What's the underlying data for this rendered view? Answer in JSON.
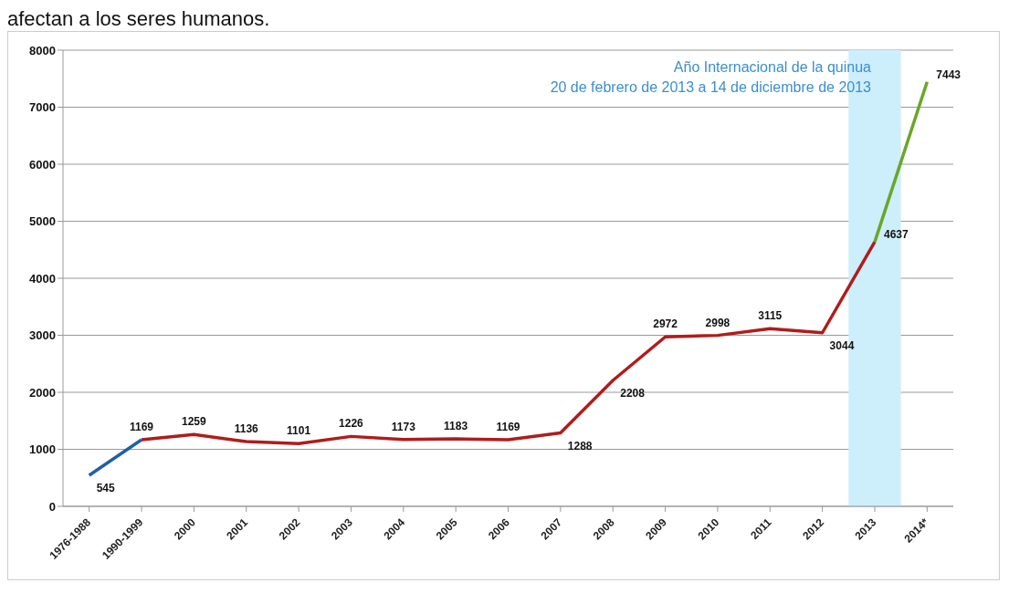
{
  "chart_data": {
    "type": "line",
    "categories": [
      "1976-1988",
      "1990-1999",
      "2000",
      "2001",
      "2002",
      "2003",
      "2004",
      "2005",
      "2006",
      "2007",
      "2008",
      "2009",
      "2010",
      "2011",
      "2012",
      "2013",
      "2014*"
    ],
    "series": [
      {
        "color": "#1f5fa8",
        "values": [
          545,
          1169,
          null,
          null,
          null,
          null,
          null,
          null,
          null,
          null,
          null,
          null,
          null,
          null,
          null,
          null,
          null
        ],
        "value_labels": [
          "545",
          null,
          null,
          null,
          null,
          null,
          null,
          null,
          null,
          null,
          null,
          null,
          null,
          null,
          null,
          null,
          null
        ]
      },
      {
        "color": "#b01c1c",
        "values": [
          null,
          1169,
          1259,
          1136,
          1101,
          1226,
          1173,
          1183,
          1169,
          1288,
          2208,
          2972,
          2998,
          3115,
          3044,
          4637,
          null
        ],
        "value_labels": [
          null,
          "1169",
          "1259",
          "1136",
          "1101",
          "1226",
          "1173",
          "1183",
          "1169",
          "1288",
          "2208",
          "2972",
          "2998",
          "3115",
          "3044",
          "4637",
          null
        ]
      },
      {
        "color": "#6aa628",
        "values": [
          null,
          null,
          null,
          null,
          null,
          null,
          null,
          null,
          null,
          null,
          null,
          null,
          null,
          null,
          null,
          4637,
          7443
        ],
        "value_labels": [
          null,
          null,
          null,
          null,
          null,
          null,
          null,
          null,
          null,
          null,
          null,
          null,
          null,
          null,
          null,
          null,
          "7443"
        ]
      }
    ],
    "ylim": [
      0,
      8000
    ],
    "yticks": [
      0,
      1000,
      2000,
      3000,
      4000,
      5000,
      6000,
      7000,
      8000
    ],
    "grid": "y",
    "marker": "none",
    "line_style": "solid",
    "bands": [
      {
        "axis": "x",
        "from": "2013",
        "to": "2013",
        "color": "#cdeefb"
      }
    ],
    "annotations": [
      "afectan a los seres humanos.",
      "Año Internacional de la quinua",
      "20 de febrero de 2013 a 14 de diciembre de 2013"
    ]
  }
}
